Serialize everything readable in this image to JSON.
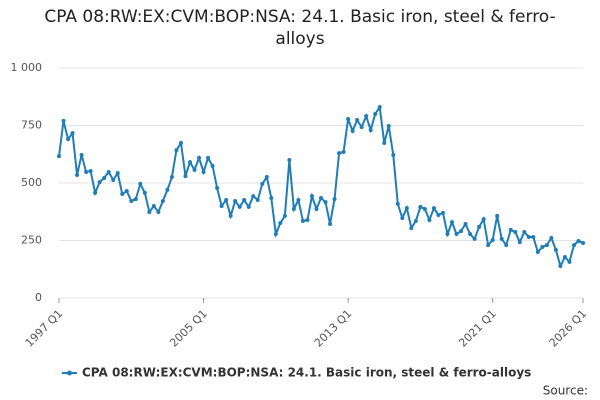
{
  "chart_data": {
    "type": "line",
    "title": "CPA 08:RW:EX:CVM:BOP:NSA: 24.1. Basic iron, steel & ferro-alloys",
    "categories": [
      "1997 Q1",
      null,
      null,
      null,
      null,
      null,
      null,
      null,
      null,
      null,
      null,
      null,
      null,
      null,
      null,
      null,
      null,
      null,
      null,
      null,
      null,
      null,
      null,
      null,
      null,
      null,
      null,
      null,
      null,
      null,
      null,
      null,
      "2005 Q1",
      null,
      null,
      null,
      null,
      null,
      null,
      null,
      null,
      null,
      null,
      null,
      null,
      null,
      null,
      null,
      null,
      null,
      null,
      null,
      null,
      null,
      null,
      null,
      null,
      null,
      null,
      null,
      null,
      null,
      null,
      null,
      "2013 Q1",
      null,
      null,
      null,
      null,
      null,
      null,
      null,
      null,
      null,
      null,
      null,
      null,
      null,
      null,
      null,
      null,
      null,
      null,
      null,
      null,
      null,
      null,
      null,
      null,
      null,
      null,
      null,
      null,
      null,
      null,
      null,
      "2021 Q1",
      null,
      null,
      null,
      null,
      null,
      null,
      null,
      null,
      null,
      null,
      null,
      null,
      null,
      null,
      null,
      null,
      null,
      null,
      null,
      "2026 Q1"
    ],
    "series": [
      {
        "name": "CPA 08:RW:EX:CVM:BOP:NSA: 24.1. Basic iron, steel & ferro-alloys",
        "color": "#1f7db8",
        "values": [
          617,
          770,
          691,
          717,
          535,
          622,
          548,
          552,
          457,
          504,
          522,
          548,
          513,
          543,
          452,
          465,
          422,
          430,
          496,
          457,
          374,
          400,
          374,
          422,
          470,
          526,
          643,
          674,
          530,
          591,
          557,
          609,
          548,
          609,
          574,
          478,
          400,
          426,
          357,
          422,
          396,
          426,
          396,
          443,
          426,
          496,
          526,
          435,
          278,
          326,
          357,
          600,
          387,
          426,
          335,
          339,
          443,
          387,
          435,
          417,
          322,
          430,
          630,
          635,
          778,
          726,
          774,
          743,
          791,
          730,
          800,
          830,
          674,
          748,
          622,
          409,
          348,
          391,
          304,
          335,
          396,
          387,
          339,
          391,
          361,
          370,
          278,
          330,
          278,
          291,
          322,
          278,
          257,
          309,
          343,
          230,
          252,
          357,
          257,
          230,
          296,
          287,
          243,
          287,
          265,
          265,
          200,
          222,
          230,
          261,
          209,
          139,
          178,
          157,
          230,
          248,
          239
        ]
      }
    ],
    "ylim": [
      0,
      1000
    ],
    "yticks": [
      0,
      250,
      500,
      750,
      {
        "value": 1000,
        "label": "1 000"
      }
    ],
    "grid": true,
    "legend": "bottom",
    "source": "Source:"
  }
}
